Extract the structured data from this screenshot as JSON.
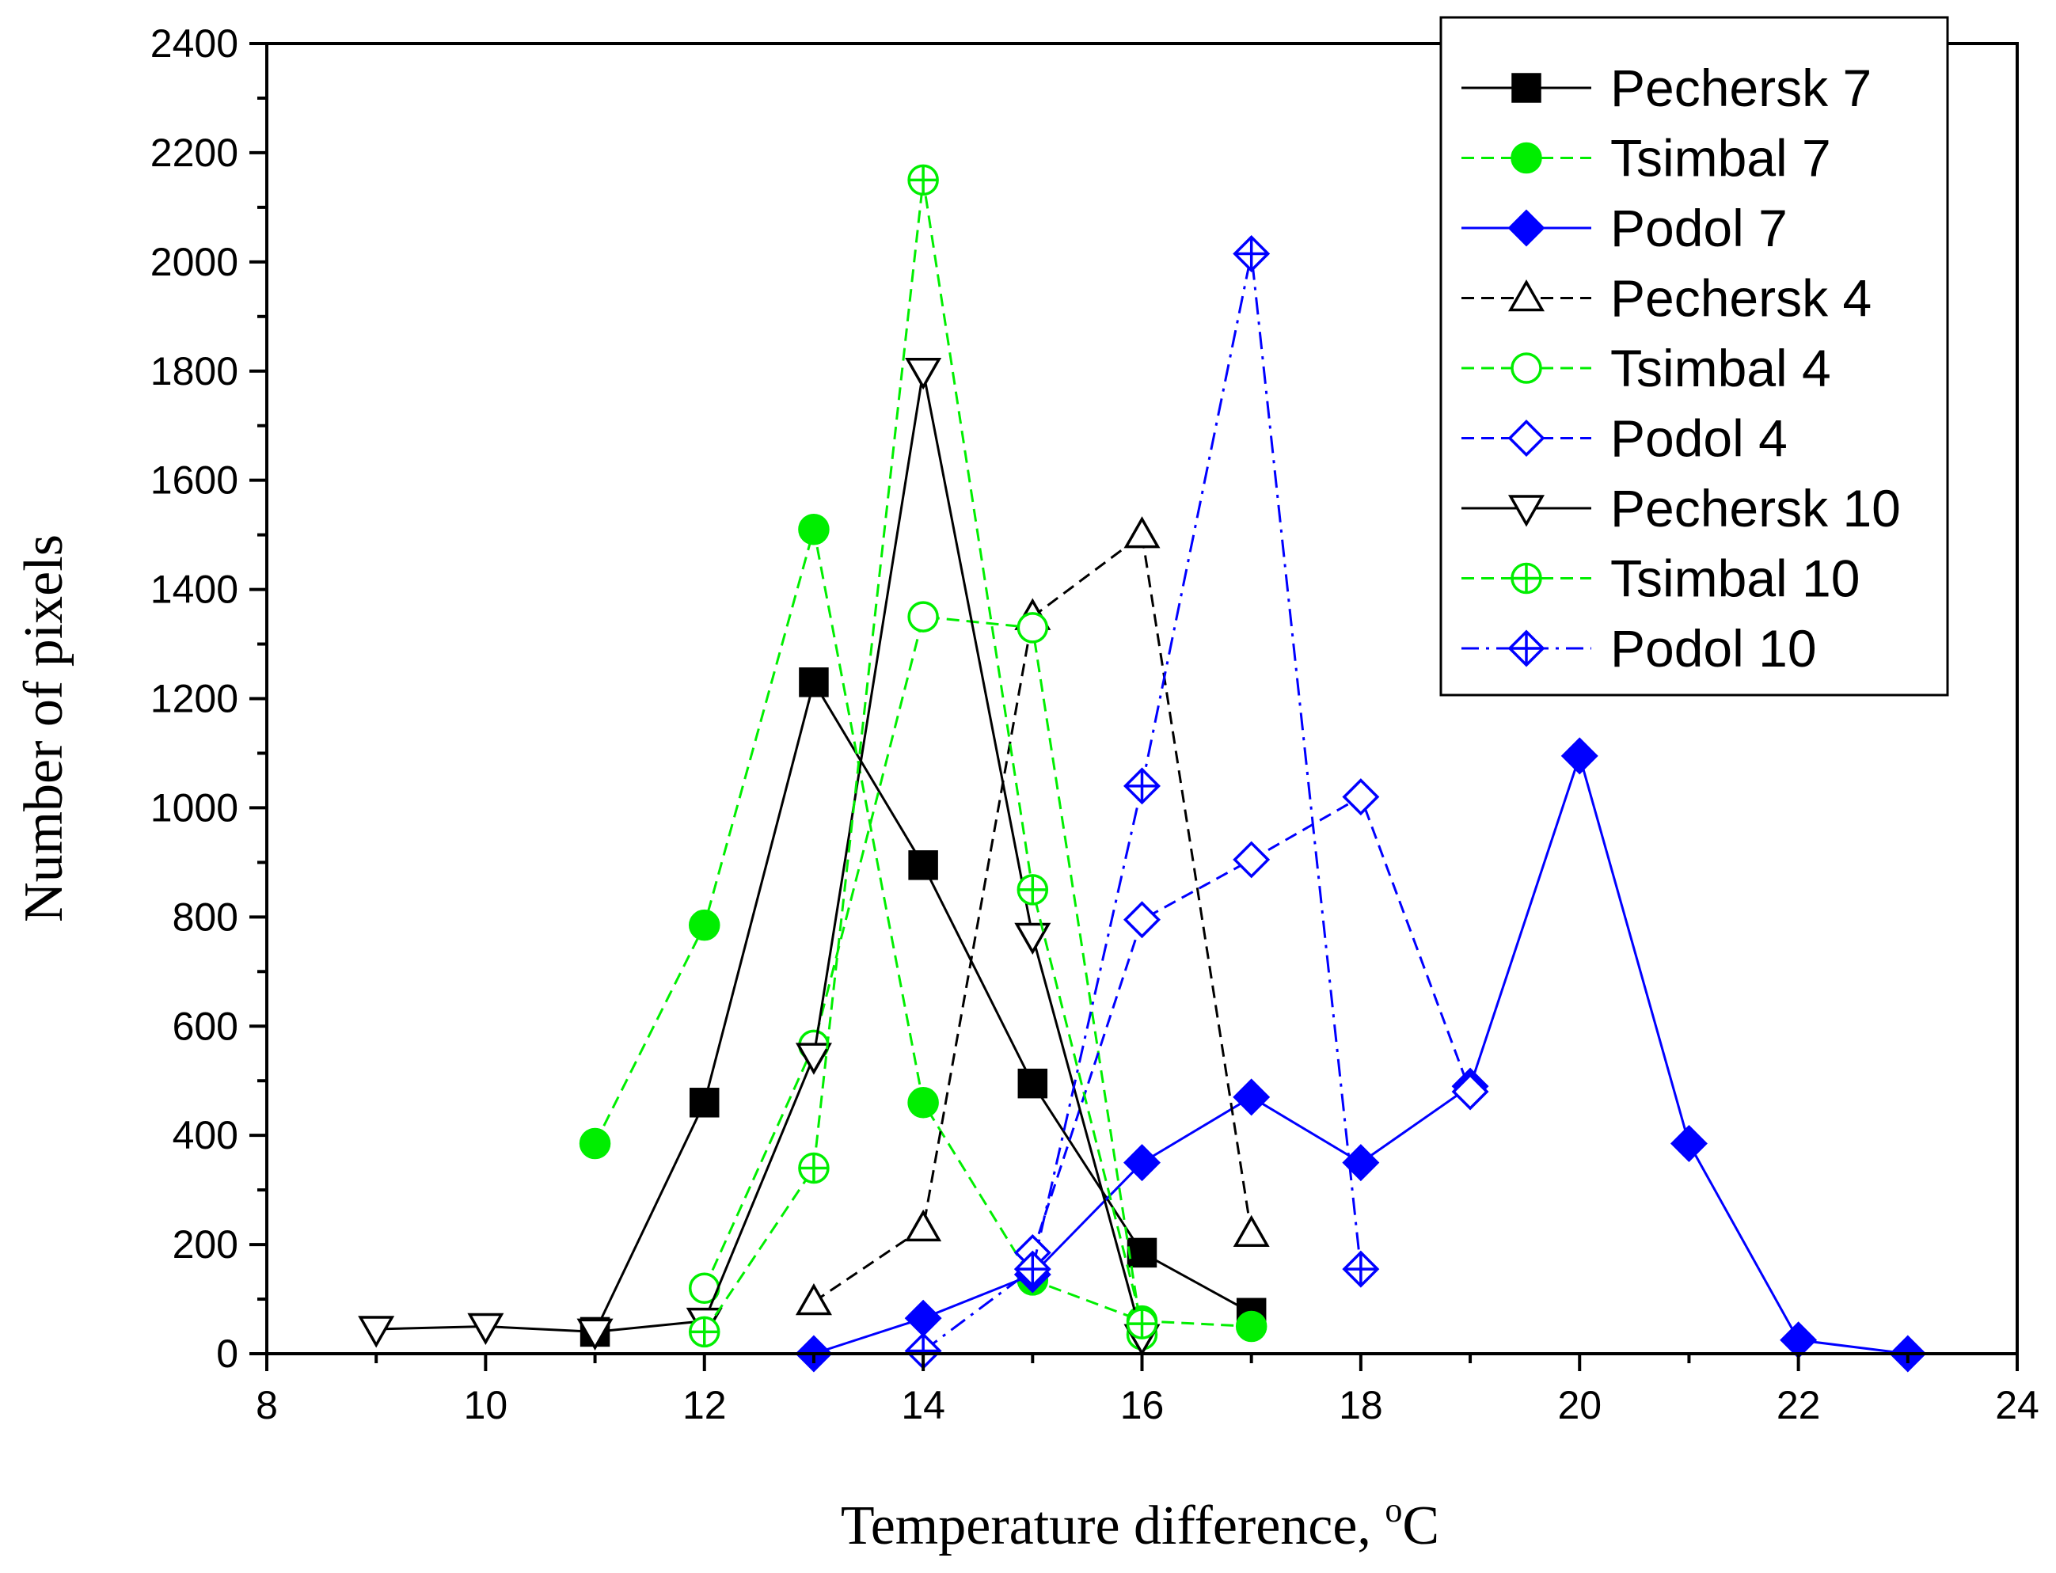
{
  "chart_data": {
    "type": "line",
    "title": "",
    "xlabel": "Temperature difference, ",
    "xlabel_unit_sup": "o",
    "xlabel_unit": "C",
    "ylabel": "Number of pixels",
    "xlim": [
      8,
      24
    ],
    "ylim": [
      0,
      2400
    ],
    "xticks": [
      8,
      10,
      12,
      14,
      16,
      18,
      20,
      22,
      24
    ],
    "yticks": [
      0,
      200,
      400,
      600,
      800,
      1000,
      1200,
      1400,
      1600,
      1800,
      2000,
      2200,
      2400
    ],
    "grid": false,
    "legend_position": "top-right",
    "series": [
      {
        "name": "Pechersk 7",
        "color": "#000000",
        "dash": "solid",
        "marker": "filled-square",
        "x": [
          11,
          12,
          13,
          14,
          15,
          16,
          17
        ],
        "y": [
          40,
          460,
          1230,
          895,
          495,
          185,
          75
        ]
      },
      {
        "name": "Tsimbal 7",
        "color": "#00ee00",
        "dash": "dash",
        "marker": "filled-circle",
        "x": [
          11,
          12,
          13,
          14,
          15,
          16,
          17
        ],
        "y": [
          385,
          785,
          1510,
          460,
          135,
          60,
          50
        ]
      },
      {
        "name": "Podol 7",
        "color": "#0000ff",
        "dash": "solid",
        "marker": "filled-diamond",
        "x": [
          13,
          14,
          15,
          16,
          17,
          18,
          19,
          20,
          21,
          22,
          23
        ],
        "y": [
          0,
          65,
          145,
          350,
          470,
          350,
          490,
          1095,
          385,
          25,
          0
        ]
      },
      {
        "name": "Pechersk 4",
        "color": "#000000",
        "dash": "dash",
        "marker": "open-triangle-up",
        "x": [
          13,
          14,
          15,
          16,
          17
        ],
        "y": [
          95,
          230,
          1350,
          1500,
          220
        ]
      },
      {
        "name": "Tsimbal 4",
        "color": "#00ee00",
        "dash": "dash",
        "marker": "open-circle",
        "x": [
          12,
          13,
          14,
          15,
          16
        ],
        "y": [
          120,
          565,
          1350,
          1330,
          35
        ]
      },
      {
        "name": "Podol 4",
        "color": "#0000ff",
        "dash": "dash",
        "marker": "open-diamond",
        "x": [
          15,
          16,
          17,
          18,
          19
        ],
        "y": [
          185,
          795,
          905,
          1020,
          480
        ]
      },
      {
        "name": "Pechersk 10",
        "color": "#000000",
        "dash": "solid",
        "marker": "open-triangle-down",
        "x": [
          9,
          10,
          11,
          12,
          13,
          14,
          15,
          16
        ],
        "y": [
          45,
          50,
          40,
          60,
          545,
          1800,
          765,
          30
        ]
      },
      {
        "name": "Tsimbal 10",
        "color": "#00ee00",
        "dash": "dash",
        "marker": "circle-plus",
        "x": [
          12,
          13,
          14,
          15,
          16
        ],
        "y": [
          40,
          340,
          2150,
          850,
          55
        ]
      },
      {
        "name": "Podol 10",
        "color": "#0000ff",
        "dash": "dashdot",
        "marker": "diamond-plus",
        "x": [
          14,
          15,
          16,
          17,
          18
        ],
        "y": [
          5,
          155,
          1040,
          2015,
          155
        ]
      }
    ]
  }
}
